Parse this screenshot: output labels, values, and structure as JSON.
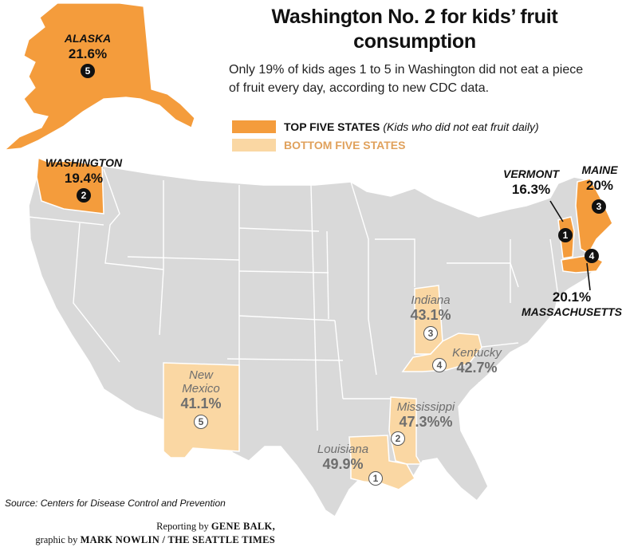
{
  "title": "Washington No. 2 for kids’ fruit consumption",
  "subtitle": "Only 19% of kids ages 1 to 5 in Washington did not eat a piece of fruit every day, according to new CDC data.",
  "legend": {
    "top_label": "TOP FIVE STATES",
    "top_note": "(Kids who did not eat fruit daily)",
    "bottom_label": "BOTTOM FIVE STATES"
  },
  "colors": {
    "top": "#f49c3c",
    "bottom": "#fad7a3",
    "other": "#d9d9d9",
    "border": "#ffffff"
  },
  "top_states": [
    {
      "name": "ALASKA",
      "value": "21.6%",
      "rank": "5"
    },
    {
      "name": "WASHINGTON",
      "value": "19.4%",
      "rank": "2"
    },
    {
      "name": "VERMONT",
      "value": "16.3%",
      "rank": "1"
    },
    {
      "name": "MAINE",
      "value": "20%",
      "rank": "3"
    },
    {
      "name": "MASSACHUSETTS",
      "value": "20.1%",
      "rank": "4"
    }
  ],
  "bottom_states": [
    {
      "name": "Indiana",
      "value": "43.1%",
      "rank": "3"
    },
    {
      "name": "Kentucky",
      "value": "42.7%",
      "rank": "4"
    },
    {
      "name": "New Mexico",
      "value": "41.1%",
      "rank": "5"
    },
    {
      "name": "Mississippi",
      "value": "47.3%%",
      "rank": "2"
    },
    {
      "name": "Louisiana",
      "value": "49.9%",
      "rank": "1"
    }
  ],
  "source": "Source: Centers for Disease Control and Prevention",
  "credit": {
    "line1_prefix": "Reporting by",
    "line1_name": "GENE BALK,",
    "line2_prefix": "graphic by",
    "line2_name": "MARK NOWLIN / THE SEATTLE TIMES"
  }
}
